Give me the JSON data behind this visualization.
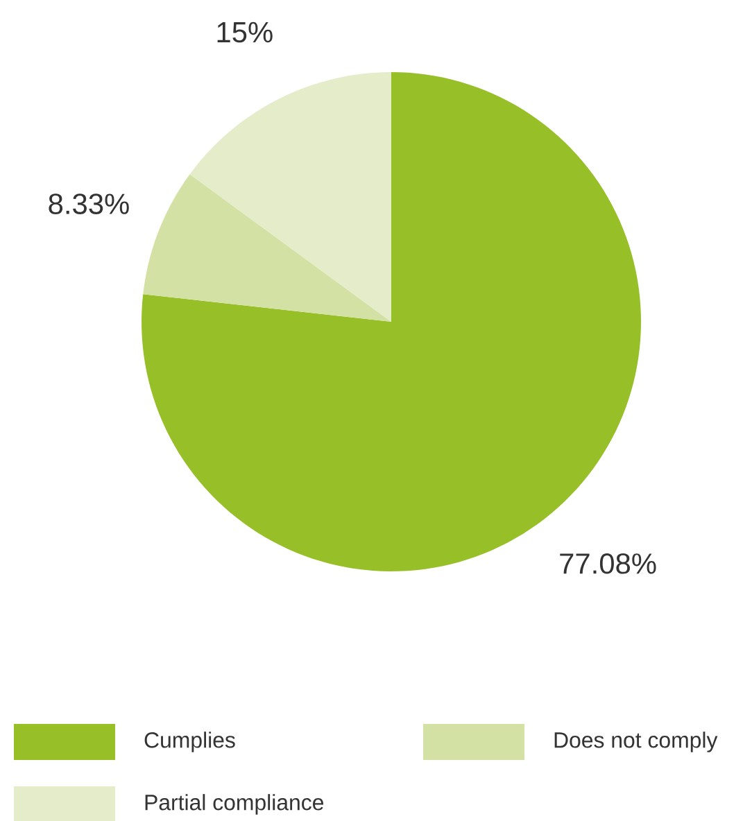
{
  "chart_data": {
    "type": "pie",
    "categories": [
      "Cumplies",
      "Does not comply",
      "Partial compliance"
    ],
    "values": [
      77.08,
      8.33,
      15
    ],
    "colors": [
      "#97bf28",
      "#d3e2a4",
      "#e4ecca"
    ],
    "value_labels": [
      "77.08%",
      "8.33%",
      "15%"
    ],
    "legend": "bottom"
  }
}
